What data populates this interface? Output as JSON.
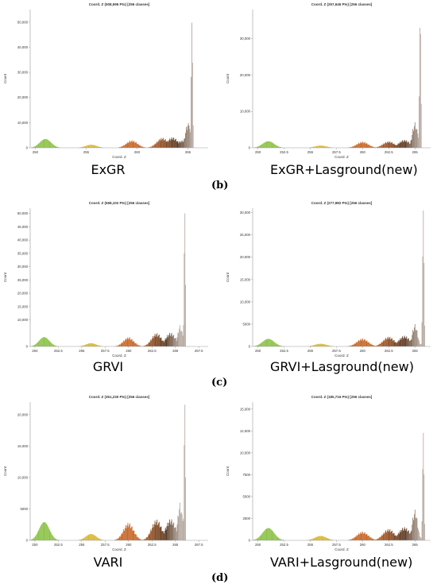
{
  "charts": [
    {
      "id": "exgr",
      "title": "Coord. Z (508,596 Pts) [256 classes]",
      "caption": "ExGR",
      "xticks": [
        "250",
        "255",
        "260",
        "265"
      ],
      "yticks": [
        "0",
        "10,000",
        "20,000",
        "30,000",
        "40,000",
        "50,000"
      ],
      "xlabel": "Coord. Z",
      "ylabel": "Count"
    },
    {
      "id": "exgr_las",
      "title": "Coord. Z (257,646 Pts) [256 classes]",
      "caption": "ExGR+Lasground(new)",
      "xticks": [
        "250",
        "252.5",
        "255",
        "257.5",
        "260",
        "262.5",
        "265"
      ],
      "yticks": [
        "0",
        "10,000",
        "20,000",
        "30,000"
      ],
      "xlabel": "Coord. Z",
      "ylabel": "Count"
    },
    {
      "id": "grvi",
      "title": "Coord. Z (568,102 Pts) [256 classes]",
      "caption": "GRVI",
      "xticks": [
        "250",
        "252.5",
        "255",
        "257.5",
        "260",
        "262.5",
        "265",
        "267.5"
      ],
      "yticks": [
        "0",
        "10,000",
        "15,000",
        "20,000",
        "25,000",
        "30,000",
        "35,000",
        "40,000",
        "45,000",
        "50,000"
      ],
      "xlabel": "Coord. Z",
      "ylabel": "Count"
    },
    {
      "id": "grvi_las",
      "title": "Coord. Z (277,982 Pts) [256 classes]",
      "caption": "GRVI+Lasground(new)",
      "xticks": [
        "250",
        "252.5",
        "255",
        "257.5",
        "260",
        "262.5",
        "265"
      ],
      "yticks": [
        "0",
        "5000",
        "10,000",
        "15,000",
        "20,000",
        "25,000",
        "30,000"
      ],
      "xlabel": "Coord. Z",
      "ylabel": "Count"
    },
    {
      "id": "vari",
      "title": "Coord. Z (351,230 Pts) [256 classes]",
      "caption": "VARI",
      "xticks": [
        "250",
        "252.5",
        "255",
        "257.5",
        "260",
        "262.5",
        "265",
        "267.5"
      ],
      "yticks": [
        "0",
        "5000",
        "10,000",
        "15,000",
        "20,000"
      ],
      "xlabel": "Coord. Z",
      "ylabel": "Count"
    },
    {
      "id": "vari_las",
      "title": "Coord. Z (180,716 Pts) [256 classes]",
      "caption": "VARI+Lasground(new)",
      "xticks": [
        "250",
        "252.5",
        "255",
        "257.5",
        "260",
        "262.5",
        "265"
      ],
      "yticks": [
        "0",
        "2500",
        "5000",
        "7500",
        "10,000",
        "12,500",
        "15,000"
      ],
      "xlabel": "Coord. Z",
      "ylabel": "Count"
    }
  ],
  "labels": {
    "b": "(b)",
    "c": "(c)",
    "d": "(d)"
  },
  "chart_data": [
    {
      "type": "bar",
      "title": "Coord. Z (508,596 Pts) [256 classes]",
      "xlabel": "Coord. Z",
      "ylabel": "Count",
      "xlim": [
        249.5,
        267
      ],
      "ylim": [
        0,
        55000
      ],
      "series": [
        {
          "name": "",
          "x": [
            251,
            255.5,
            259.5,
            262.5,
            263.5,
            264.5,
            265,
            265.4
          ],
          "values": [
            3500,
            1200,
            3000,
            4000,
            4200,
            3000,
            10000,
            50000
          ]
        }
      ]
    },
    {
      "type": "bar",
      "title": "Coord. Z (257,646 Pts) [256 classes]",
      "xlabel": "Coord. Z",
      "ylabel": "Count",
      "xlim": [
        249.5,
        266.5
      ],
      "ylim": [
        0,
        38000
      ],
      "series": [
        {
          "name": "",
          "x": [
            251,
            256,
            260,
            262.5,
            264,
            265,
            265.5
          ],
          "values": [
            1800,
            600,
            1700,
            1800,
            2200,
            7000,
            36000
          ]
        }
      ]
    },
    {
      "type": "bar",
      "title": "Coord. Z (568,102 Pts) [256 classes]",
      "xlabel": "Coord. Z",
      "ylabel": "Count",
      "xlim": [
        249.5,
        268.5
      ],
      "ylim": [
        0,
        52000
      ],
      "series": [
        {
          "name": "",
          "x": [
            251,
            256,
            260,
            263,
            264.5,
            265.5,
            266
          ],
          "values": [
            3500,
            1200,
            3500,
            5000,
            5200,
            8000,
            51000
          ]
        }
      ]
    },
    {
      "type": "bar",
      "title": "Coord. Z (277,982 Pts) [256 classes]",
      "xlabel": "Coord. Z",
      "ylabel": "Count",
      "xlim": [
        249.5,
        266.5
      ],
      "ylim": [
        0,
        31000
      ],
      "series": [
        {
          "name": "",
          "x": [
            251,
            256,
            260,
            262.5,
            264,
            265,
            265.8
          ],
          "values": [
            1700,
            600,
            1800,
            2200,
            2400,
            5000,
            30500
          ]
        }
      ]
    },
    {
      "type": "bar",
      "title": "Coord. Z (351,230 Pts) [256 classes]",
      "xlabel": "Coord. Z",
      "ylabel": "Count",
      "xlim": [
        249.5,
        268.5
      ],
      "ylim": [
        0,
        22000
      ],
      "series": [
        {
          "name": "",
          "x": [
            251,
            256,
            260,
            263,
            264.5,
            265.5,
            266
          ],
          "values": [
            2900,
            1000,
            2800,
            3300,
            3400,
            6000,
            22000
          ]
        }
      ]
    },
    {
      "type": "bar",
      "title": "Coord. Z (180,716 Pts) [256 classes]",
      "xlabel": "Coord. Z",
      "ylabel": "Count",
      "xlim": [
        249.5,
        266.5
      ],
      "ylim": [
        0,
        15800
      ],
      "series": [
        {
          "name": "",
          "x": [
            251,
            256,
            260,
            262.5,
            264,
            265,
            265.8
          ],
          "values": [
            1400,
            500,
            1000,
            1300,
            1500,
            3500,
            12300
          ]
        }
      ]
    }
  ],
  "colors": {
    "green": "#8dc24a",
    "yellow": "#d9b83a",
    "orange": "#c8692a",
    "brown": "#5a3a24",
    "grey": "#b8aca4",
    "axis": "#9a9a9a"
  }
}
